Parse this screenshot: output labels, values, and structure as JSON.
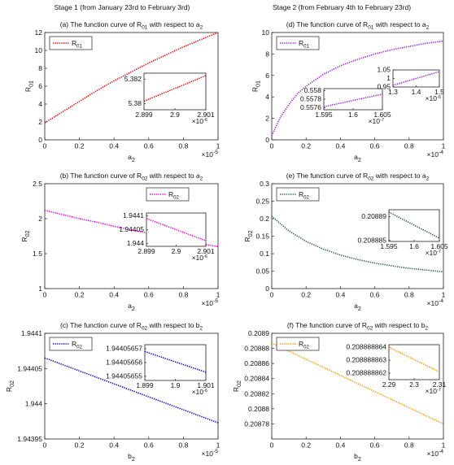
{
  "column_headers": [
    "Stage 1 (from January 23rd to February 3rd)",
    "Stage 2 (from February 4th to February 23rd)"
  ],
  "chart_data": [
    {
      "type": "line",
      "title": "(a) The function curve of R01 with respect to a2",
      "xlabel": "a2",
      "ylabel": "R01",
      "x_multiplier": {
        "base": "×10",
        "exponent": "-5"
      },
      "x": [
        0,
        0.1,
        0.2,
        0.3,
        0.4,
        0.5,
        0.6,
        0.7,
        0.8,
        0.9,
        1
      ],
      "series": [
        {
          "name": "R01",
          "color": "#ff0000",
          "values": [
            1.9,
            3.1,
            4.3,
            5.5,
            6.6,
            7.6,
            8.6,
            9.5,
            10.4,
            11.2,
            12.0
          ]
        }
      ],
      "xlim": [
        0,
        1
      ],
      "ylim": [
        0,
        12
      ],
      "xticks": [
        0,
        0.2,
        0.4,
        0.6,
        0.8,
        1
      ],
      "yticks": [
        0,
        2,
        4,
        6,
        8,
        10,
        12
      ],
      "legend": "upper left",
      "insets": [
        {
          "x": [
            2.899,
            2.901
          ],
          "series": [
            {
              "color": "#ff0000",
              "values": [
                5.3802,
                5.3823
              ]
            }
          ],
          "xlim": [
            2.899,
            2.901
          ],
          "ylim": [
            5.3795,
            5.3825
          ],
          "xticks": [
            2.899,
            2.9,
            2.901
          ],
          "yticks": [
            5.38,
            5.382
          ],
          "x_multiplier": {
            "base": "×10",
            "exponent": "-6"
          }
        }
      ]
    },
    {
      "type": "line",
      "title": "(b) The function curve of R02 with respect to a2",
      "xlabel": "a2",
      "ylabel": "R02",
      "x_multiplier": {
        "base": "×10",
        "exponent": "-5"
      },
      "x": [
        0,
        0.1,
        0.2,
        0.3,
        0.4,
        0.5,
        0.6,
        0.7,
        0.8,
        0.9,
        1
      ],
      "series": [
        {
          "name": "R02",
          "color": "#ff00ff",
          "values": [
            2.12,
            2.06,
            2.0,
            1.95,
            1.89,
            1.84,
            1.79,
            1.74,
            1.69,
            1.64,
            1.6
          ]
        }
      ],
      "xlim": [
        0,
        1
      ],
      "ylim": [
        1,
        2.5
      ],
      "xticks": [
        0,
        0.2,
        0.4,
        0.6,
        0.8,
        1
      ],
      "yticks": [
        1,
        1.5,
        2,
        2.5
      ],
      "legend": "upper right",
      "insets": [
        {
          "x": [
            2.899,
            2.901
          ],
          "series": [
            {
              "color": "#ff00ff",
              "values": [
                1.94409,
                1.94401
              ]
            }
          ],
          "xlim": [
            2.899,
            2.901
          ],
          "ylim": [
            1.94399,
            1.94411
          ],
          "xticks": [
            2.899,
            2.9,
            2.901
          ],
          "yticks": [
            1.944,
            1.94405,
            1.9441
          ],
          "x_multiplier": {
            "base": "×10",
            "exponent": "-6"
          }
        }
      ]
    },
    {
      "type": "line",
      "title": "(c) The function curve of R02 with respect to b2",
      "xlabel": "b2",
      "ylabel": "R02",
      "x_multiplier": {
        "base": "×10",
        "exponent": "-5"
      },
      "x": [
        0,
        0.5,
        1
      ],
      "series": [
        {
          "name": "R02",
          "color": "#0000ff",
          "values": [
            1.944065,
            1.944019,
            1.943973
          ]
        }
      ],
      "xlim": [
        0,
        1
      ],
      "ylim": [
        1.94395,
        1.9441
      ],
      "xticks": [
        0,
        0.2,
        0.4,
        0.6,
        0.8,
        1
      ],
      "yticks": [
        1.94395,
        1.944,
        1.94405,
        1.9441
      ],
      "legend": "upper left",
      "insets": [
        {
          "x": [
            1.899,
            1.901
          ],
          "series": [
            {
              "color": "#0000ff",
              "values": [
                1.944056568,
                1.944056553
              ]
            }
          ],
          "xlim": [
            1.899,
            1.901
          ],
          "ylim": [
            1.944056547,
            1.944056573
          ],
          "xticks": [
            1.899,
            1.9,
            1.901
          ],
          "yticks": [
            1.94405655,
            1.94405656,
            1.94405657
          ],
          "x_multiplier": {
            "base": "×10",
            "exponent": "-6"
          }
        }
      ]
    },
    {
      "type": "line",
      "title": "(d) The function curve of R01 with respect to a2",
      "xlabel": "a2",
      "ylabel": "R01",
      "x_multiplier": {
        "base": "×10",
        "exponent": "-4"
      },
      "x": [
        0,
        0.05,
        0.1,
        0.15,
        0.2,
        0.3,
        0.4,
        0.5,
        0.6,
        0.7,
        0.8,
        0.9,
        1
      ],
      "series": [
        {
          "name": "R01",
          "color": "#a020f0",
          "values": [
            0.4,
            2.1,
            3.3,
            4.3,
            5.0,
            6.1,
            6.9,
            7.5,
            8.0,
            8.4,
            8.7,
            9.0,
            9.2
          ]
        }
      ],
      "xlim": [
        0,
        1
      ],
      "ylim": [
        0,
        10
      ],
      "xticks": [
        0,
        0.2,
        0.4,
        0.6,
        0.8,
        1
      ],
      "yticks": [
        0,
        2,
        4,
        6,
        8,
        10
      ],
      "legend": "upper left",
      "insets": [
        {
          "x": [
            1.595,
            1.605
          ],
          "series": [
            {
              "color": "#a020f0",
              "values": [
                0.55762,
                0.55792
              ]
            }
          ],
          "xlim": [
            1.595,
            1.605
          ],
          "ylim": [
            0.55755,
            0.55805
          ],
          "xticks": [
            1.595,
            1.6,
            1.605
          ],
          "yticks": [
            0.5576,
            0.5578,
            0.558
          ],
          "x_multiplier": {
            "base": "×10",
            "exponent": "-7"
          }
        },
        {
          "x": [
            1.3,
            1.5
          ],
          "series": [
            {
              "color": "#a020f0",
              "values": [
                0.96,
                1.04
              ]
            }
          ],
          "xlim": [
            1.3,
            1.5
          ],
          "ylim": [
            0.95,
            1.05
          ],
          "xticks": [
            1.3,
            1.4,
            1.5
          ],
          "yticks": [
            0.95,
            1,
            1.05
          ],
          "x_multiplier": {
            "base": "×10",
            "exponent": "-6"
          }
        }
      ]
    },
    {
      "type": "line",
      "title": "(e) The function curve of R02 with respect to a2",
      "xlabel": "a2",
      "ylabel": "R02",
      "x_multiplier": {
        "base": "×10",
        "exponent": "-4"
      },
      "x": [
        0,
        0.1,
        0.2,
        0.3,
        0.4,
        0.5,
        0.6,
        0.7,
        0.8,
        0.9,
        1
      ],
      "series": [
        {
          "name": "R02",
          "color": "#2e5e4e",
          "values": [
            0.207,
            0.165,
            0.135,
            0.113,
            0.096,
            0.083,
            0.073,
            0.065,
            0.058,
            0.053,
            0.048
          ]
        }
      ],
      "xlim": [
        0,
        1
      ],
      "ylim": [
        0,
        0.3
      ],
      "xticks": [
        0,
        0.2,
        0.4,
        0.6,
        0.8,
        1
      ],
      "yticks": [
        0,
        0.05,
        0.1,
        0.15,
        0.2,
        0.25,
        0.3
      ],
      "legend": "upper left",
      "insets": [
        {
          "x": [
            1.595,
            1.605
          ],
          "series": [
            {
              "color": "#2e5e4e",
              "values": [
                0.208891,
                0.2088855
              ]
            }
          ],
          "xlim": [
            1.595,
            1.605
          ],
          "ylim": [
            0.2088848,
            0.2088915
          ],
          "xticks": [
            1.595,
            1.6,
            1.605
          ],
          "yticks": [
            0.208885,
            0.20889
          ],
          "x_multiplier": {
            "base": "×10",
            "exponent": "-7"
          }
        }
      ]
    },
    {
      "type": "line",
      "title": "(f) The function curve of R02 with respect to b2",
      "xlabel": "b2",
      "ylabel": "R02",
      "x_multiplier": {
        "base": "×10",
        "exponent": "-4"
      },
      "x": [
        0,
        0.5,
        1
      ],
      "series": [
        {
          "name": "R02",
          "color": "#ff9900",
          "values": [
            0.208887,
            0.2088335,
            0.20878
          ]
        }
      ],
      "xlim": [
        0,
        1
      ],
      "ylim": [
        0.20876,
        0.2089
      ],
      "xticks": [
        0,
        0.2,
        0.4,
        0.6,
        0.8,
        1
      ],
      "yticks": [
        0.20878,
        0.2088,
        0.20882,
        0.20884,
        0.20886,
        0.20888,
        0.2089
      ],
      "legend": "upper left",
      "insets": [
        {
          "x": [
            2.29,
            2.31
          ],
          "series": [
            {
              "color": "#ff9900",
              "values": [
                0.208888864,
                0.2088888621
              ]
            }
          ],
          "xlim": [
            2.29,
            2.31
          ],
          "ylim": [
            0.2088888615,
            0.2088888642
          ],
          "xticks": [
            2.29,
            2.3,
            2.31
          ],
          "yticks": [
            0.208888862,
            0.208888863,
            0.208888864
          ],
          "x_multiplier": {
            "base": "×10",
            "exponent": "-7"
          }
        }
      ]
    }
  ]
}
